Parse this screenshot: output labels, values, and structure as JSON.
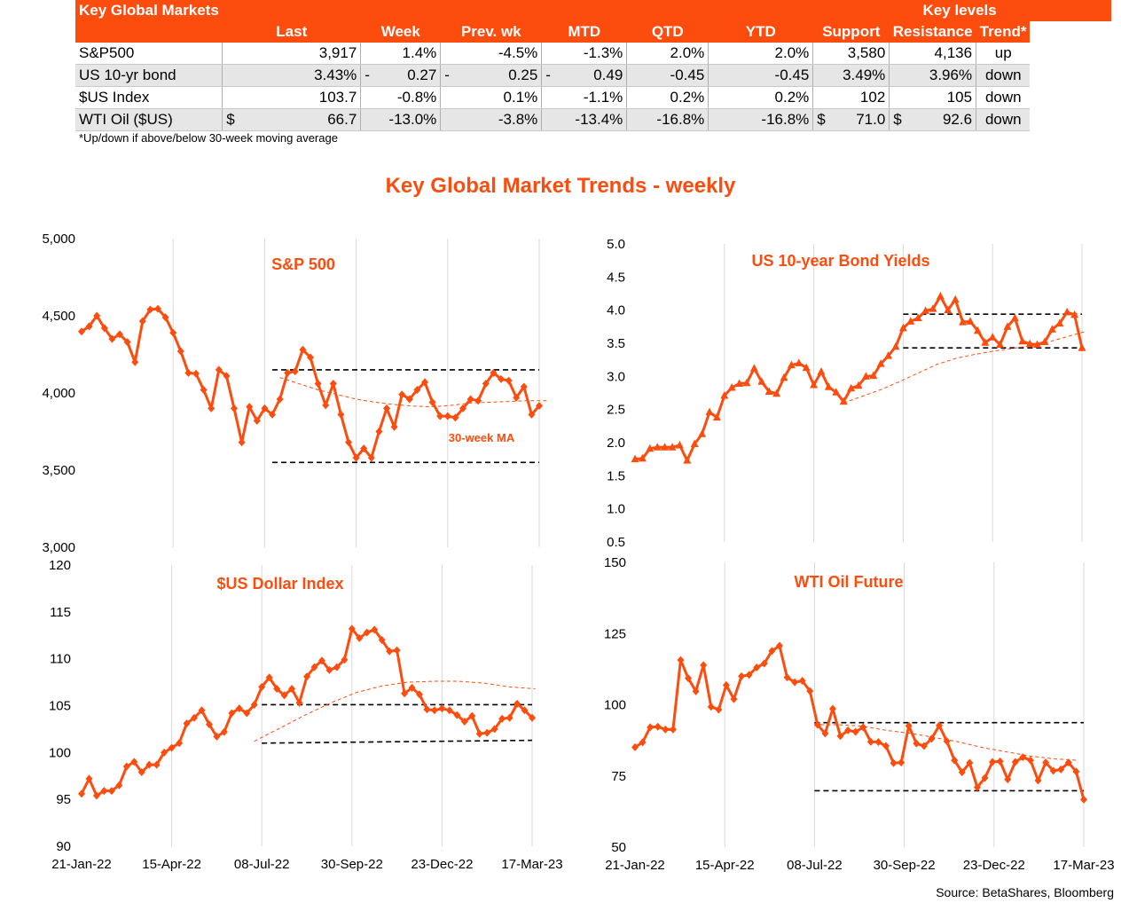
{
  "table": {
    "title": "Key Global Markets",
    "key_levels_label": "Key levels",
    "columns": [
      "Last",
      "Week",
      "Prev. wk",
      "MTD",
      "QTD",
      "YTD",
      "Support",
      "Resistance",
      "Trend*"
    ],
    "rows": [
      {
        "name": "S&P500",
        "last": "3,917",
        "week": "1.4%",
        "prev": "-4.5%",
        "mtd": "-1.3%",
        "qtd": "2.0%",
        "ytd": "2.0%",
        "support": "3,580",
        "resistance": "4,136",
        "trend": "up"
      },
      {
        "name": "US 10-yr bond",
        "last": "3.43%",
        "week": "0.27",
        "prev": "0.25",
        "mtd": "0.49",
        "qtd": "-0.45",
        "ytd": "-0.45",
        "support": "3.49%",
        "resistance": "3.96%",
        "trend": "down"
      },
      {
        "name": "$US Index",
        "last": "103.7",
        "week": "-0.8%",
        "prev": "0.1%",
        "mtd": "-1.1%",
        "qtd": "0.2%",
        "ytd": "0.2%",
        "support": "102",
        "resistance": "105",
        "trend": "down"
      },
      {
        "name": "WTI Oil ($US)",
        "last": "66.7",
        "week": "-13.0%",
        "prev": "-3.8%",
        "mtd": "-13.4%",
        "qtd": "-16.8%",
        "ytd": "-16.8%",
        "support": "71.0",
        "resistance": "92.6",
        "trend": "down"
      }
    ],
    "dash": "-",
    "dollar": "$"
  },
  "footnote": "*Up/down if above/below 30-week moving average",
  "main_title": "Key Global Market Trends - weekly",
  "source": "Source: BetaShares, Bloomberg",
  "colors": {
    "accent": "#FC4D0F",
    "shade": "#E6E6E6",
    "grid": "#D9D9D9"
  },
  "chart_data": [
    {
      "type": "line",
      "title": "S&P 500",
      "x_ticks": [],
      "y_ticks": [
        "3,000",
        "3,500",
        "4,000",
        "4,500",
        "5,000"
      ],
      "ylim": [
        3000,
        5000
      ],
      "marker": "diamond",
      "values": [
        4398,
        4432,
        4500,
        4420,
        4350,
        4380,
        4330,
        4200,
        4465,
        4540,
        4545,
        4490,
        4390,
        4270,
        4130,
        4125,
        4020,
        3900,
        4150,
        4110,
        3900,
        3680,
        3910,
        3820,
        3900,
        3860,
        3960,
        4130,
        4140,
        4280,
        4230,
        4060,
        3920,
        4060,
        3860,
        3680,
        3580,
        3640,
        3580,
        3750,
        3900,
        3780,
        3990,
        3960,
        4020,
        4070,
        3940,
        3850,
        3850,
        3840,
        3900,
        3960,
        3950,
        4060,
        4130,
        4090,
        4080,
        3970,
        4040,
        3860,
        3917
      ],
      "ma_label": "30-week MA",
      "ma": [
        4100,
        4060,
        4020,
        3990,
        3960,
        3940,
        3925,
        3915,
        3910,
        3920,
        3935,
        3940,
        3945,
        3950,
        3950
      ],
      "ma_start_index": 26,
      "ma_step": 2.5,
      "levels": [
        4150,
        3550
      ],
      "level_start_index": 25
    },
    {
      "type": "line",
      "title": "US 10-year Bond Yields",
      "x_ticks": [],
      "y_ticks": [
        "0.5",
        "1.0",
        "1.5",
        "2.0",
        "2.5",
        "3.0",
        "3.5",
        "4.0",
        "4.5",
        "5.0"
      ],
      "ylim": [
        0.5,
        5.0
      ],
      "marker": "triangle",
      "values": [
        1.75,
        1.76,
        1.91,
        1.93,
        1.93,
        1.93,
        1.96,
        1.73,
        1.98,
        2.13,
        2.46,
        2.38,
        2.71,
        2.83,
        2.89,
        2.9,
        3.12,
        2.92,
        2.77,
        2.74,
        2.98,
        3.17,
        3.2,
        3.13,
        2.87,
        3.07,
        2.84,
        2.76,
        2.62,
        2.82,
        2.86,
        3.0,
        3.01,
        3.19,
        3.31,
        3.45,
        3.73,
        3.83,
        3.88,
        3.99,
        4.02,
        4.21,
        4.0,
        4.16,
        3.82,
        3.83,
        3.69,
        3.51,
        3.59,
        3.48,
        3.75,
        3.88,
        3.53,
        3.49,
        3.48,
        3.52,
        3.71,
        3.8,
        3.97,
        3.93,
        3.43
      ],
      "ma": [
        2.6,
        2.7,
        2.8,
        2.92,
        3.05,
        3.18,
        3.27,
        3.33,
        3.38,
        3.42,
        3.46,
        3.52,
        3.6,
        3.68
      ],
      "ma_start_index": 28,
      "ma_step": 2.5,
      "levels": [
        3.94,
        3.43
      ],
      "level_start_index": 36
    },
    {
      "type": "line",
      "title": "$US Dollar Index",
      "x_ticks": [
        "21-Jan-22",
        "15-Apr-22",
        "08-Jul-22",
        "30-Sep-22",
        "23-Dec-22",
        "17-Mar-23"
      ],
      "y_ticks": [
        "90",
        "95",
        "100",
        "105",
        "110",
        "115",
        "120"
      ],
      "ylim": [
        90,
        120
      ],
      "marker": "diamond",
      "values": [
        95.6,
        97.2,
        95.4,
        95.9,
        95.9,
        96.5,
        98.5,
        99.0,
        97.9,
        98.7,
        98.7,
        100.0,
        100.5,
        101.0,
        103.1,
        103.7,
        104.5,
        103.0,
        101.7,
        102.2,
        104.2,
        104.7,
        104.2,
        105.1,
        107.0,
        108.0,
        106.8,
        106.1,
        106.8,
        105.3,
        108.1,
        109.1,
        109.8,
        108.8,
        109.1,
        109.9,
        113.2,
        112.2,
        112.8,
        113.1,
        112.0,
        110.8,
        110.9,
        106.3,
        106.9,
        106.2,
        104.6,
        104.5,
        104.7,
        104.5,
        104.0,
        103.3,
        103.9,
        102.0,
        102.1,
        102.5,
        103.6,
        103.7,
        105.2,
        104.5,
        103.7
      ],
      "ma": [
        101.2,
        102.6,
        104.0,
        105.3,
        106.4,
        107.1,
        107.5,
        107.6,
        107.6,
        107.4,
        107.0,
        106.8
      ],
      "ma_start_index": 23,
      "ma_step": 3.4,
      "levels": [
        105.1,
        101.0,
        101.3
      ],
      "level_start_index": 24,
      "support_line": true
    },
    {
      "type": "line",
      "title": "WTI Oil Future",
      "x_ticks": [
        "21-Jan-22",
        "15-Apr-22",
        "08-Jul-22",
        "30-Sep-22",
        "23-Dec-22",
        "17-Mar-23"
      ],
      "y_ticks": [
        "50",
        "75",
        "100",
        "125",
        "150"
      ],
      "ylim": [
        50,
        150
      ],
      "marker": "diamond",
      "values": [
        85.1,
        86.8,
        92.1,
        92.3,
        91.3,
        91.3,
        115.7,
        109.3,
        104.7,
        113.9,
        99.3,
        98.3,
        106.9,
        102.0,
        110.0,
        110.5,
        113.1,
        114.5,
        118.9,
        120.7,
        109.6,
        107.9,
        108.4,
        104.8,
        93.0,
        89.9,
        98.6,
        89.0,
        91.0,
        90.5,
        92.1,
        87.0,
        86.9,
        85.5,
        79.5,
        79.7,
        92.6,
        86.4,
        85.5,
        88.1,
        92.7,
        87.2,
        80.5,
        76.3,
        79.6,
        71.0,
        74.3,
        79.9,
        80.1,
        73.8,
        79.9,
        81.6,
        80.5,
        73.4,
        79.7,
        76.8,
        77.3,
        79.7,
        76.5,
        66.7
      ],
      "ma": [
        93.0,
        93.0,
        92.5,
        91.0,
        90.0,
        88.5,
        87.0,
        85.0,
        83.5,
        82.0,
        81.0,
        80.5
      ],
      "ma_start_index": 24,
      "ma_step": 3.2,
      "levels": [
        93.7,
        69.8
      ],
      "level_start_index": 24
    }
  ]
}
